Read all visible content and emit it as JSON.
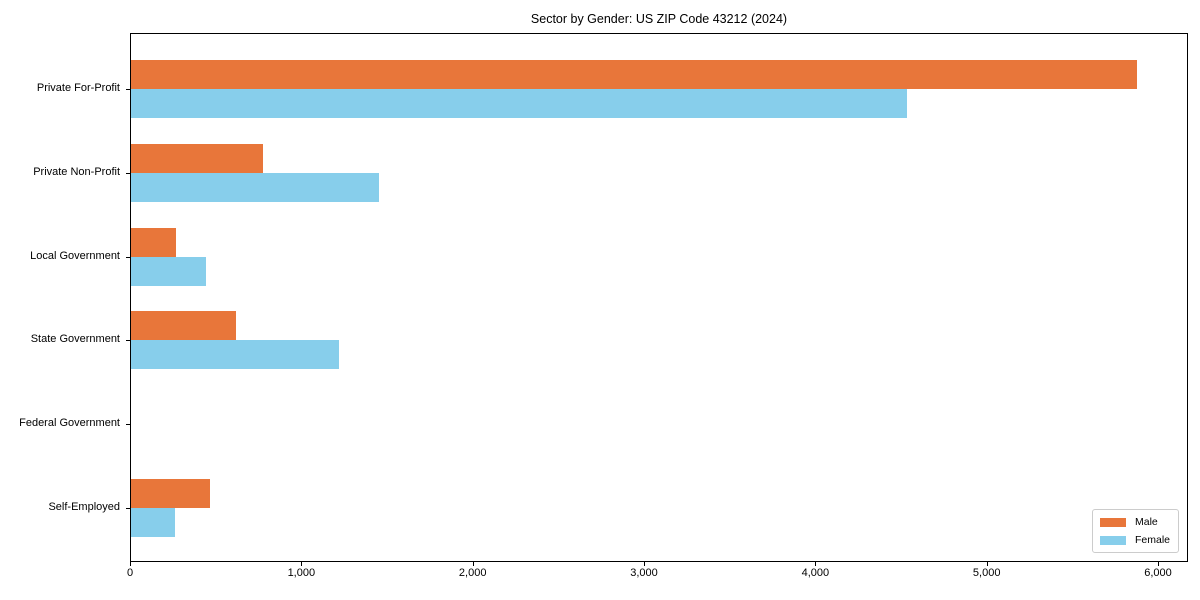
{
  "chart_data": {
    "type": "bar",
    "orientation": "horizontal",
    "title": "Sector by Gender: US ZIP Code 43212 (2024)",
    "categories": [
      "Private For-Profit",
      "Private Non-Profit",
      "Local Government",
      "State Government",
      "Federal Government",
      "Self-Employed"
    ],
    "series": [
      {
        "name": "Male",
        "color": "#e8763a",
        "values": [
          5870,
          770,
          260,
          615,
          0,
          460
        ]
      },
      {
        "name": "Female",
        "color": "#87ceeb",
        "values": [
          4530,
          1445,
          435,
          1215,
          0,
          255
        ]
      }
    ],
    "xlabel": "",
    "ylabel": "",
    "xlim": [
      0,
      6175
    ],
    "xticks": {
      "values": [
        0,
        1000,
        2000,
        3000,
        4000,
        5000,
        6000
      ],
      "labels": [
        "0",
        "1,000",
        "2,000",
        "3,000",
        "4,000",
        "5,000",
        "6,000"
      ]
    },
    "legend": {
      "position": "lower right"
    },
    "grid": false,
    "background": "#ffffff"
  }
}
